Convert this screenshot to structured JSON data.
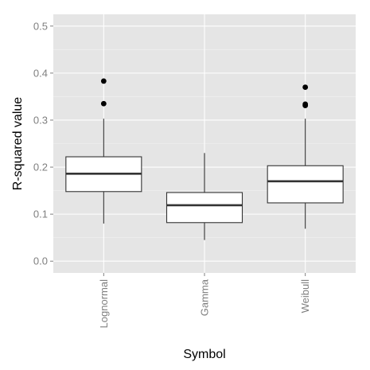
{
  "chart_data": {
    "type": "boxplot",
    "title": "",
    "xlabel": "Symbol",
    "ylabel": "R-squared value",
    "ylim": [
      -0.025,
      0.525
    ],
    "y_ticks": [
      0.0,
      0.1,
      0.2,
      0.3,
      0.4,
      0.5
    ],
    "y_tick_labels": [
      "0.0",
      "0.1",
      "0.2",
      "0.3",
      "0.4",
      "0.5"
    ],
    "categories": [
      "Lognormal",
      "Gamma",
      "Weibull"
    ],
    "boxes": [
      {
        "category": "Lognormal",
        "whisker_low": 0.08,
        "q1": 0.148,
        "median": 0.186,
        "q3": 0.222,
        "whisker_high": 0.303,
        "outliers": [
          0.335,
          0.383
        ]
      },
      {
        "category": "Gamma",
        "whisker_low": 0.045,
        "q1": 0.082,
        "median": 0.119,
        "q3": 0.146,
        "whisker_high": 0.23,
        "outliers": []
      },
      {
        "category": "Weibull",
        "whisker_low": 0.069,
        "q1": 0.124,
        "median": 0.17,
        "q3": 0.203,
        "whisker_high": 0.303,
        "outliers": [
          0.331,
          0.334,
          0.37
        ]
      }
    ],
    "grid": true,
    "legend": "none",
    "colors": {
      "panel_background": "#e5e5e5",
      "grid_major": "#ffffff",
      "grid_minor": "#f2f2f2",
      "box_fill": "#ffffff",
      "box_stroke": "#333333",
      "outlier": "#000000",
      "tick_label": "#7f7f7f"
    }
  }
}
